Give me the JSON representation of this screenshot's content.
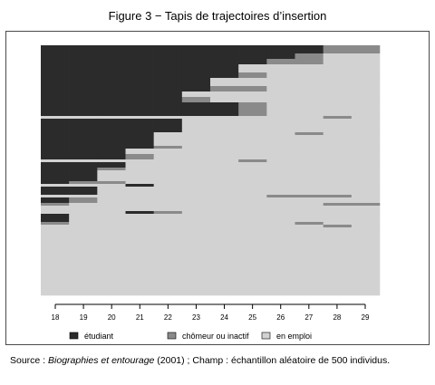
{
  "figure": {
    "title": "Figure 3 − Tapis de trajectoires d’insertion",
    "source_prefix": "Source : ",
    "source_italic": "Biographies et entourage",
    "source_suffix": " (2001) ; Champ : échantillon aléatoire de 500 individus."
  },
  "colors": {
    "etudiant": "#2b2b2b",
    "chomeur": "#8a8a8a",
    "emploi": "#d2d2d2",
    "axis": "#000000"
  },
  "chart_data": {
    "type": "heatmap",
    "title": "Figure 3 − Tapis de trajectoires d’insertion",
    "xlabel": "",
    "ylabel": "",
    "x_ticks": [
      18,
      19,
      20,
      21,
      22,
      23,
      24,
      25,
      26,
      27,
      28,
      29
    ],
    "legend": [
      {
        "key": "etudiant",
        "label": "étudiant"
      },
      {
        "key": "chomeur",
        "label": "chômeur ou inactif"
      },
      {
        "key": "emploi",
        "label": "en emploi"
      }
    ],
    "legend_position": "bottom",
    "n_individuals": 500,
    "states_code": "E = étudiant, C = chômeur ou inactif, W = en emploi",
    "ages": [
      18,
      19,
      20,
      21,
      22,
      23,
      24,
      25,
      26,
      27,
      28,
      29
    ],
    "rows": [
      {
        "share": 0.03,
        "states": "EEEEEEEEEECC"
      },
      {
        "share": 0.02,
        "states": "EEEEEEEEECWW"
      },
      {
        "share": 0.02,
        "states": "EEEEEEEECCWW"
      },
      {
        "share": 0.03,
        "states": "EEEEEEEWWWWW"
      },
      {
        "share": 0.02,
        "states": "EEEEEEECWWWW"
      },
      {
        "share": 0.03,
        "states": "EEEEEEWWWWWW"
      },
      {
        "share": 0.02,
        "states": "EEEEEECCWWWW"
      },
      {
        "share": 0.02,
        "states": "EEEEEWWWWWWW"
      },
      {
        "share": 0.02,
        "states": "EEEEECWWWWWW"
      },
      {
        "share": 0.05,
        "states": "EEEEEEECWWWW"
      },
      {
        "share": 0.01,
        "states": "WWWWWWWWWWCW"
      },
      {
        "share": 0.05,
        "states": "EEEEEWWWWWWW"
      },
      {
        "share": 0.01,
        "states": "EEEEWWWWWCWW"
      },
      {
        "share": 0.04,
        "states": "EEEEWWWWWWWW"
      },
      {
        "share": 0.01,
        "states": "EEEECWWWWWWW"
      },
      {
        "share": 0.02,
        "states": "EEEWWWWWWWWW"
      },
      {
        "share": 0.02,
        "states": "EEECWWWWWWWW"
      },
      {
        "share": 0.01,
        "states": "WWWWWWWCWWWW"
      },
      {
        "share": 0.02,
        "states": "EEEWWWWWWWWW"
      },
      {
        "share": 0.01,
        "states": "EECWWWWWWWWW"
      },
      {
        "share": 0.04,
        "states": "EEWWWWWWWWWW"
      },
      {
        "share": 0.01,
        "states": "ECCWWWWWWWWW"
      },
      {
        "share": 0.01,
        "states": "WWWEWWWWWWWW"
      },
      {
        "share": 0.03,
        "states": "EEWWWWWWWWWW"
      },
      {
        "share": 0.01,
        "states": "WWWWWWWWCCCW"
      },
      {
        "share": 0.02,
        "states": "ECWWWWWWWWWW"
      },
      {
        "share": 0.01,
        "states": "CWWWWWWWWWCC"
      },
      {
        "share": 0.02,
        "states": "WWWWWWWWWWWW"
      },
      {
        "share": 0.01,
        "states": "WWWECWWWWWWW"
      },
      {
        "share": 0.03,
        "states": "EWWWWWWWWWWW"
      },
      {
        "share": 0.01,
        "states": "CWWWWWWWWCWW"
      },
      {
        "share": 0.01,
        "states": "WWWWWWWWWWCW"
      },
      {
        "share": 0.25,
        "states": "WWWWWWWWWWWW"
      }
    ]
  }
}
